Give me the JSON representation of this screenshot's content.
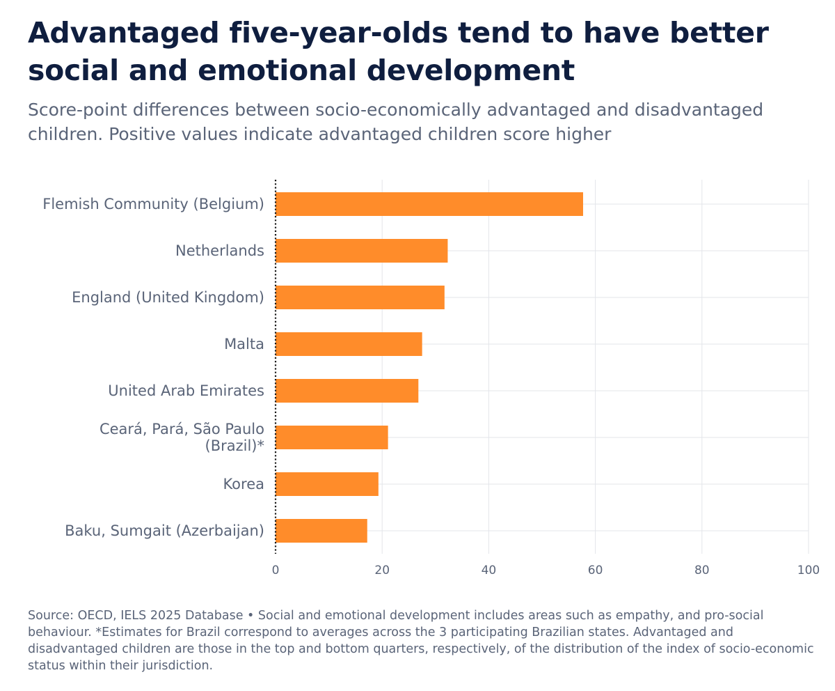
{
  "header": {
    "title": "Advantaged five-year-olds tend to have better social and emotional development",
    "subtitle": "Score-point differences between socio-economically advantaged and disadvantaged children. Positive values indicate advantaged children score higher"
  },
  "chart_data": {
    "type": "bar",
    "orientation": "horizontal",
    "categories": [
      "Flemish Community (Belgium)",
      "Netherlands",
      "England (United Kingdom)",
      "Malta",
      "United Arab Emirates",
      "Ceará, Pará, São Paulo (Brazil)*",
      "Korea",
      "Baku, Sumgait (Azerbaijan)"
    ],
    "values": [
      57.7,
      32.3,
      31.7,
      27.5,
      26.8,
      21.1,
      19.3,
      17.2
    ],
    "xlim": [
      0,
      100
    ],
    "xticks": [
      0,
      20,
      40,
      60,
      80,
      100
    ],
    "grid": true,
    "bar_color": "#ff8c2a",
    "zero_line": "dotted"
  },
  "footnote": "Source: OECD, IELS 2025 Database • Social and emotional development includes areas such as empathy, and pro-social behaviour. *Estimates for Brazil correspond to averages across the 3 participating Brazilian states. Advantaged and disadvantaged children are those in the top and bottom quarters, respectively, of the distribution of the index of socio-economic status within their jurisdiction."
}
